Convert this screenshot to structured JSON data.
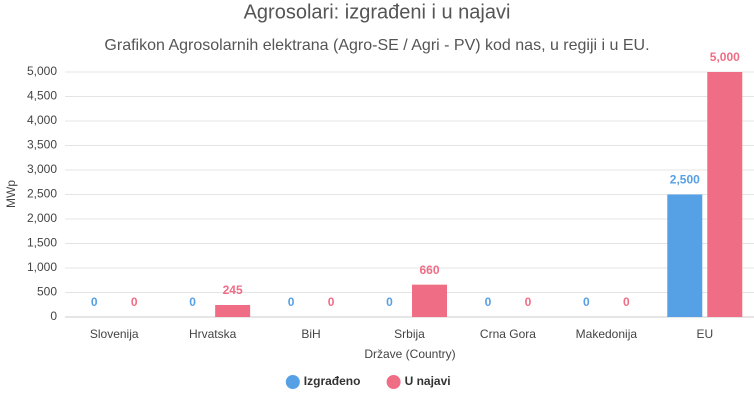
{
  "chart_data": {
    "type": "bar",
    "title": "Agrosolari: izgrađeni i u najavi",
    "subtitle": "Grafikon Agrosolarnih elektrana (Agro-SE / Agri - PV) kod nas, u regiji i u EU.",
    "x_label": "Države (Country)",
    "y_label": "MWp",
    "categories": [
      "Slovenija",
      "Hrvatska",
      "BiH",
      "Srbija",
      "Crna Gora",
      "Makedonija",
      "EU"
    ],
    "series": [
      {
        "name": "Izgrađeno",
        "color": "#56a0e5",
        "values": [
          0,
          0,
          0,
          0,
          0,
          0,
          2500
        ],
        "value_labels": [
          "0",
          "0",
          "0",
          "0",
          "0",
          "0",
          "2,500"
        ]
      },
      {
        "name": "U najavi",
        "color": "#f06d86",
        "values": [
          0,
          245,
          0,
          660,
          0,
          0,
          5000
        ],
        "value_labels": [
          "0",
          "245",
          "0",
          "660",
          "0",
          "0",
          "5,000"
        ]
      }
    ],
    "ylim": [
      0,
      5000
    ],
    "yticks": [
      0,
      500,
      {
        "value": 1000,
        "label": "1,000"
      },
      {
        "value": 1500,
        "label": "1,500"
      },
      {
        "value": 2000,
        "label": "2,000"
      },
      {
        "value": 2500,
        "label": "2,500"
      },
      {
        "value": 3000,
        "label": "3,000"
      },
      {
        "value": 3500,
        "label": "3,500"
      },
      {
        "value": 4000,
        "label": "4,000"
      },
      {
        "value": 4500,
        "label": "4,500"
      },
      {
        "value": 5000,
        "label": "5,000"
      }
    ],
    "grid": true,
    "legend": "bottom"
  }
}
